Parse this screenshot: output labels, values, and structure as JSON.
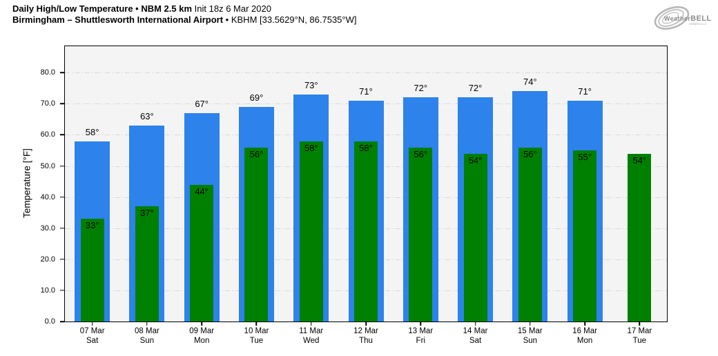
{
  "header": {
    "title_bold": "Daily High/Low Temperature • NBM 2.5 km",
    "title_regular": "Init 18z 6 Mar 2020",
    "subtitle_bold": "Birmingham – Shuttlesworth International Airport",
    "subtitle_regular": "• KBHM [33.5629°N, 86.7535°W]"
  },
  "logo": {
    "text_weather": "Weather",
    "text_bell": "BELL",
    "text_sub": "Analytics LLC"
  },
  "chart_data": {
    "type": "bar",
    "title": "Daily High/Low Temperature • NBM 2.5 km Init 18z 6 Mar 2020",
    "subtitle": "Birmingham – Shuttlesworth International Airport • KBHM [33.5629°N, 86.7535°W]",
    "xlabel": "",
    "ylabel": "Temperature [°F]",
    "ylim": [
      0,
      88.5
    ],
    "yticks": [
      0,
      10,
      20,
      30,
      40,
      50,
      60,
      70,
      80
    ],
    "ytick_labels": [
      "0.0",
      "10.0",
      "20.0",
      "30.0",
      "40.0",
      "50.0",
      "60.0",
      "70.0",
      "80.0"
    ],
    "grid": "horizontal dash-dot",
    "plot_bg": "#f4f4f4",
    "categories": [
      {
        "date": "07 Mar",
        "day": "Sat"
      },
      {
        "date": "08 Mar",
        "day": "Sun"
      },
      {
        "date": "09 Mar",
        "day": "Mon"
      },
      {
        "date": "10 Mar",
        "day": "Tue"
      },
      {
        "date": "11 Mar",
        "day": "Wed"
      },
      {
        "date": "12 Mar",
        "day": "Thu"
      },
      {
        "date": "13 Mar",
        "day": "Fri"
      },
      {
        "date": "14 Mar",
        "day": "Sat"
      },
      {
        "date": "15 Mar",
        "day": "Sun"
      },
      {
        "date": "16 Mar",
        "day": "Mon"
      },
      {
        "date": "17 Mar",
        "day": "Tue"
      }
    ],
    "series": [
      {
        "name": "High",
        "color": "#2d82eb",
        "values": [
          58,
          63,
          67,
          69,
          73,
          71,
          72,
          72,
          74,
          71,
          null
        ]
      },
      {
        "name": "Low",
        "color": "#008000",
        "values": [
          33,
          37,
          44,
          56,
          58,
          58,
          56,
          54,
          56,
          55,
          54
        ]
      }
    ],
    "bar_label_suffix": "°"
  }
}
